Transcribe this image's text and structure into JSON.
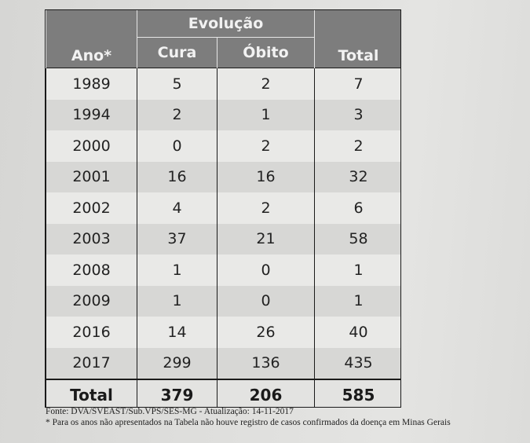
{
  "table": {
    "header": {
      "group_label": "Evolução",
      "col_ano": "Ano*",
      "col_cura": "Cura",
      "col_obito": "Óbito",
      "col_total": "Total"
    },
    "rows": [
      {
        "ano": "1989",
        "cura": "5",
        "obito": "2",
        "total": "7"
      },
      {
        "ano": "1994",
        "cura": "2",
        "obito": "1",
        "total": "3"
      },
      {
        "ano": "2000",
        "cura": "0",
        "obito": "2",
        "total": "2"
      },
      {
        "ano": "2001",
        "cura": "16",
        "obito": "16",
        "total": "32"
      },
      {
        "ano": "2002",
        "cura": "4",
        "obito": "2",
        "total": "6"
      },
      {
        "ano": "2003",
        "cura": "37",
        "obito": "21",
        "total": "58"
      },
      {
        "ano": "2008",
        "cura": "1",
        "obito": "0",
        "total": "1"
      },
      {
        "ano": "2009",
        "cura": "1",
        "obito": "0",
        "total": "1"
      },
      {
        "ano": "2016",
        "cura": "14",
        "obito": "26",
        "total": "40"
      },
      {
        "ano": "2017",
        "cura": "299",
        "obito": "136",
        "total": "435"
      }
    ],
    "footer": {
      "label": "Total",
      "cura": "379",
      "obito": "206",
      "total": "585"
    }
  },
  "source_text": "Fonte: DVA/SVEAST/Sub.VPS/SES-MG - Atualização: 14-11-2017",
  "note_text": "* Para os anos não apresentados na Tabela não houve registro de casos confirmados da doença em Minas Gerais"
}
